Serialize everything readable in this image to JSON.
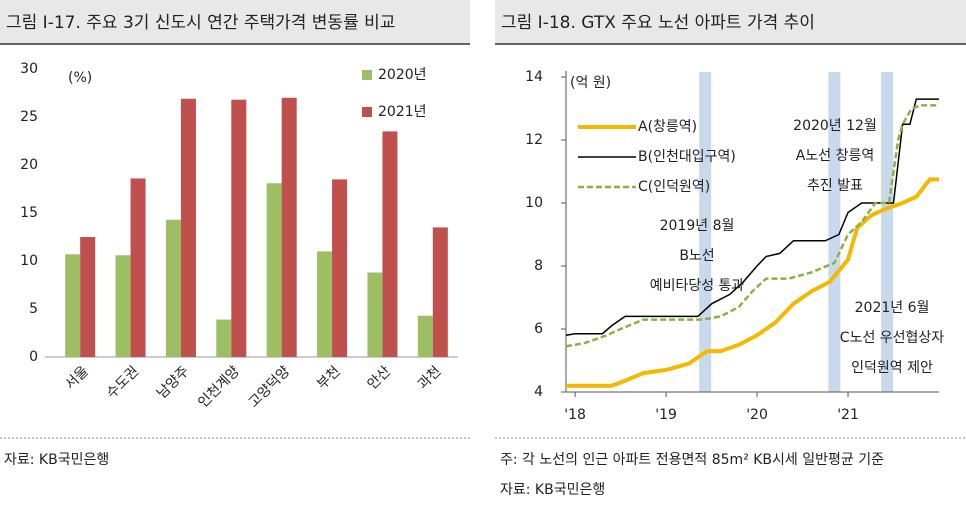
{
  "chart_data": [
    {
      "type": "bar",
      "title": "그림 Ⅰ-17. 주요 3기 신도시 연간 주택가격 변동률 비교",
      "unit_label": "(%)",
      "categories": [
        "서울",
        "수도권",
        "남양주",
        "인천계양",
        "고양덕양",
        "부천",
        "안산",
        "과천"
      ],
      "series": [
        {
          "name": "2020년",
          "color": "#9bbf62",
          "values": [
            10.7,
            10.6,
            14.3,
            3.9,
            18.1,
            11.0,
            8.8,
            4.3
          ]
        },
        {
          "name": "2021년",
          "color": "#c0504d",
          "values": [
            12.5,
            18.6,
            26.9,
            26.8,
            27.0,
            18.5,
            23.5,
            13.5
          ]
        }
      ],
      "ylim": [
        0,
        30
      ],
      "yticks": [
        0,
        5,
        10,
        15,
        20,
        25,
        30
      ],
      "grid": false,
      "source": "자료: KB국민은행"
    },
    {
      "type": "line",
      "title": "그림 Ⅰ-18.  GTX 주요 노선 아파트 가격 추이",
      "unit_label": "(억 원)",
      "series": [
        {
          "name": "A(창릉역)",
          "color": "#f5b800",
          "style": "solid",
          "x": [
            2017.9,
            2018.4,
            2018.5,
            2018.75,
            2019.0,
            2019.25,
            2019.45,
            2019.6,
            2019.8,
            2020.0,
            2020.2,
            2020.4,
            2020.6,
            2020.8,
            2021.0,
            2021.1,
            2021.25,
            2021.4,
            2021.6,
            2021.75,
            2021.9,
            2022.0
          ],
          "values": [
            4.2,
            4.2,
            4.3,
            4.6,
            4.7,
            4.9,
            5.3,
            5.3,
            5.5,
            5.8,
            6.2,
            6.8,
            7.2,
            7.5,
            8.2,
            9.2,
            9.6,
            9.8,
            10.0,
            10.2,
            10.75,
            10.75
          ]
        },
        {
          "name": "B(인천대입구역)",
          "color": "#000000",
          "style": "thin",
          "x": [
            2017.9,
            2018.0,
            2018.3,
            2018.4,
            2018.55,
            2019.35,
            2019.5,
            2019.7,
            2019.85,
            2020.0,
            2020.1,
            2020.25,
            2020.4,
            2020.75,
            2020.9,
            2021.0,
            2021.15,
            2021.5,
            2021.6,
            2021.68,
            2021.75,
            2022.0
          ],
          "values": [
            5.8,
            5.85,
            5.85,
            6.1,
            6.4,
            6.4,
            6.8,
            7.1,
            7.5,
            8.0,
            8.3,
            8.4,
            8.8,
            8.8,
            9.0,
            9.7,
            10.0,
            10.0,
            12.5,
            12.5,
            13.3,
            13.3
          ]
        },
        {
          "name": "C(인덕원역)",
          "color": "#8db043",
          "style": "dashed",
          "x": [
            2017.9,
            2018.1,
            2018.35,
            2018.5,
            2018.75,
            2019.4,
            2019.6,
            2019.8,
            2019.95,
            2020.1,
            2020.35,
            2020.6,
            2020.85,
            2021.0,
            2021.15,
            2021.3,
            2021.45,
            2021.55,
            2021.6,
            2021.7,
            2021.8,
            2022.0
          ],
          "values": [
            5.45,
            5.55,
            5.8,
            6.0,
            6.3,
            6.3,
            6.4,
            6.7,
            7.2,
            7.6,
            7.6,
            7.8,
            8.1,
            9.0,
            9.4,
            10.0,
            10.0,
            12.0,
            12.5,
            13.0,
            13.1,
            13.1
          ]
        }
      ],
      "xlim": [
        2017.9,
        2022.0
      ],
      "xticks": [
        {
          "value": 2018,
          "label": "'18"
        },
        {
          "value": 2019,
          "label": "'19"
        },
        {
          "value": 2020,
          "label": "'20"
        },
        {
          "value": 2021,
          "label": "'21"
        }
      ],
      "ylim": [
        4,
        14
      ],
      "yticks": [
        4,
        6,
        8,
        10,
        12,
        14
      ],
      "grid": false,
      "highlights": [
        2019.43,
        2020.85,
        2021.43
      ],
      "highlight_color": "#c9d9ec",
      "annotations": [
        {
          "lines": [
            "2019년 8월",
            "B노선",
            "예비타당성 통과"
          ]
        },
        {
          "lines": [
            "2020년 12월",
            "A노선 창릉역",
            "추진 발표"
          ]
        },
        {
          "lines": [
            "2021년 6월",
            "C노선 우선협상자",
            "인덕원역 제안"
          ]
        }
      ],
      "note": "주: 각 노선의 인근 아파트 전용면적 85m² KB시세 일반평균 기준",
      "source": "자료: KB국민은행"
    }
  ]
}
